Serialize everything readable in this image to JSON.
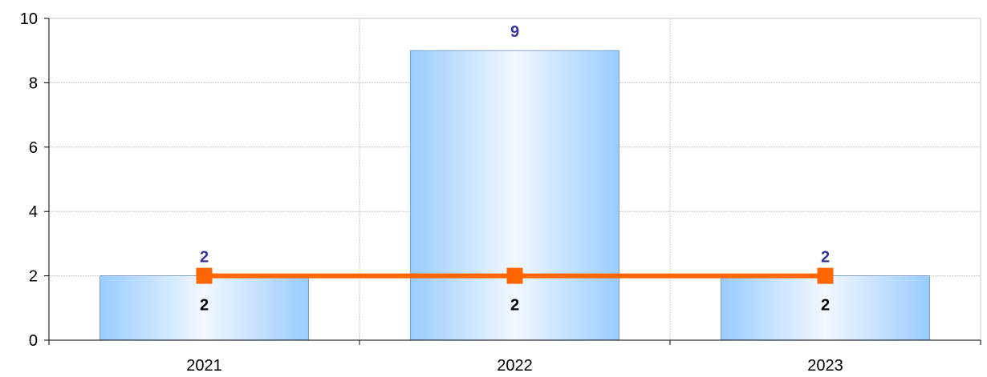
{
  "chart_data": {
    "type": "bar",
    "title": "",
    "xlabel": "",
    "ylabel": "",
    "categories": [
      "2021",
      "2022",
      "2023"
    ],
    "ylim": [
      0,
      10
    ],
    "yticks": [
      "0",
      "2",
      "4",
      "6",
      "8",
      "10"
    ],
    "grid": true,
    "series": [
      {
        "type": "bar",
        "values": [
          2,
          9,
          2
        ],
        "data_labels": [
          "2",
          "9",
          "2"
        ],
        "color": "#99ccff",
        "label_color": "#333399"
      },
      {
        "type": "line",
        "values": [
          2,
          2,
          2
        ],
        "data_labels": [
          "2",
          "2",
          "2"
        ],
        "color": "#ff6600",
        "label_color": "#000000"
      }
    ]
  }
}
